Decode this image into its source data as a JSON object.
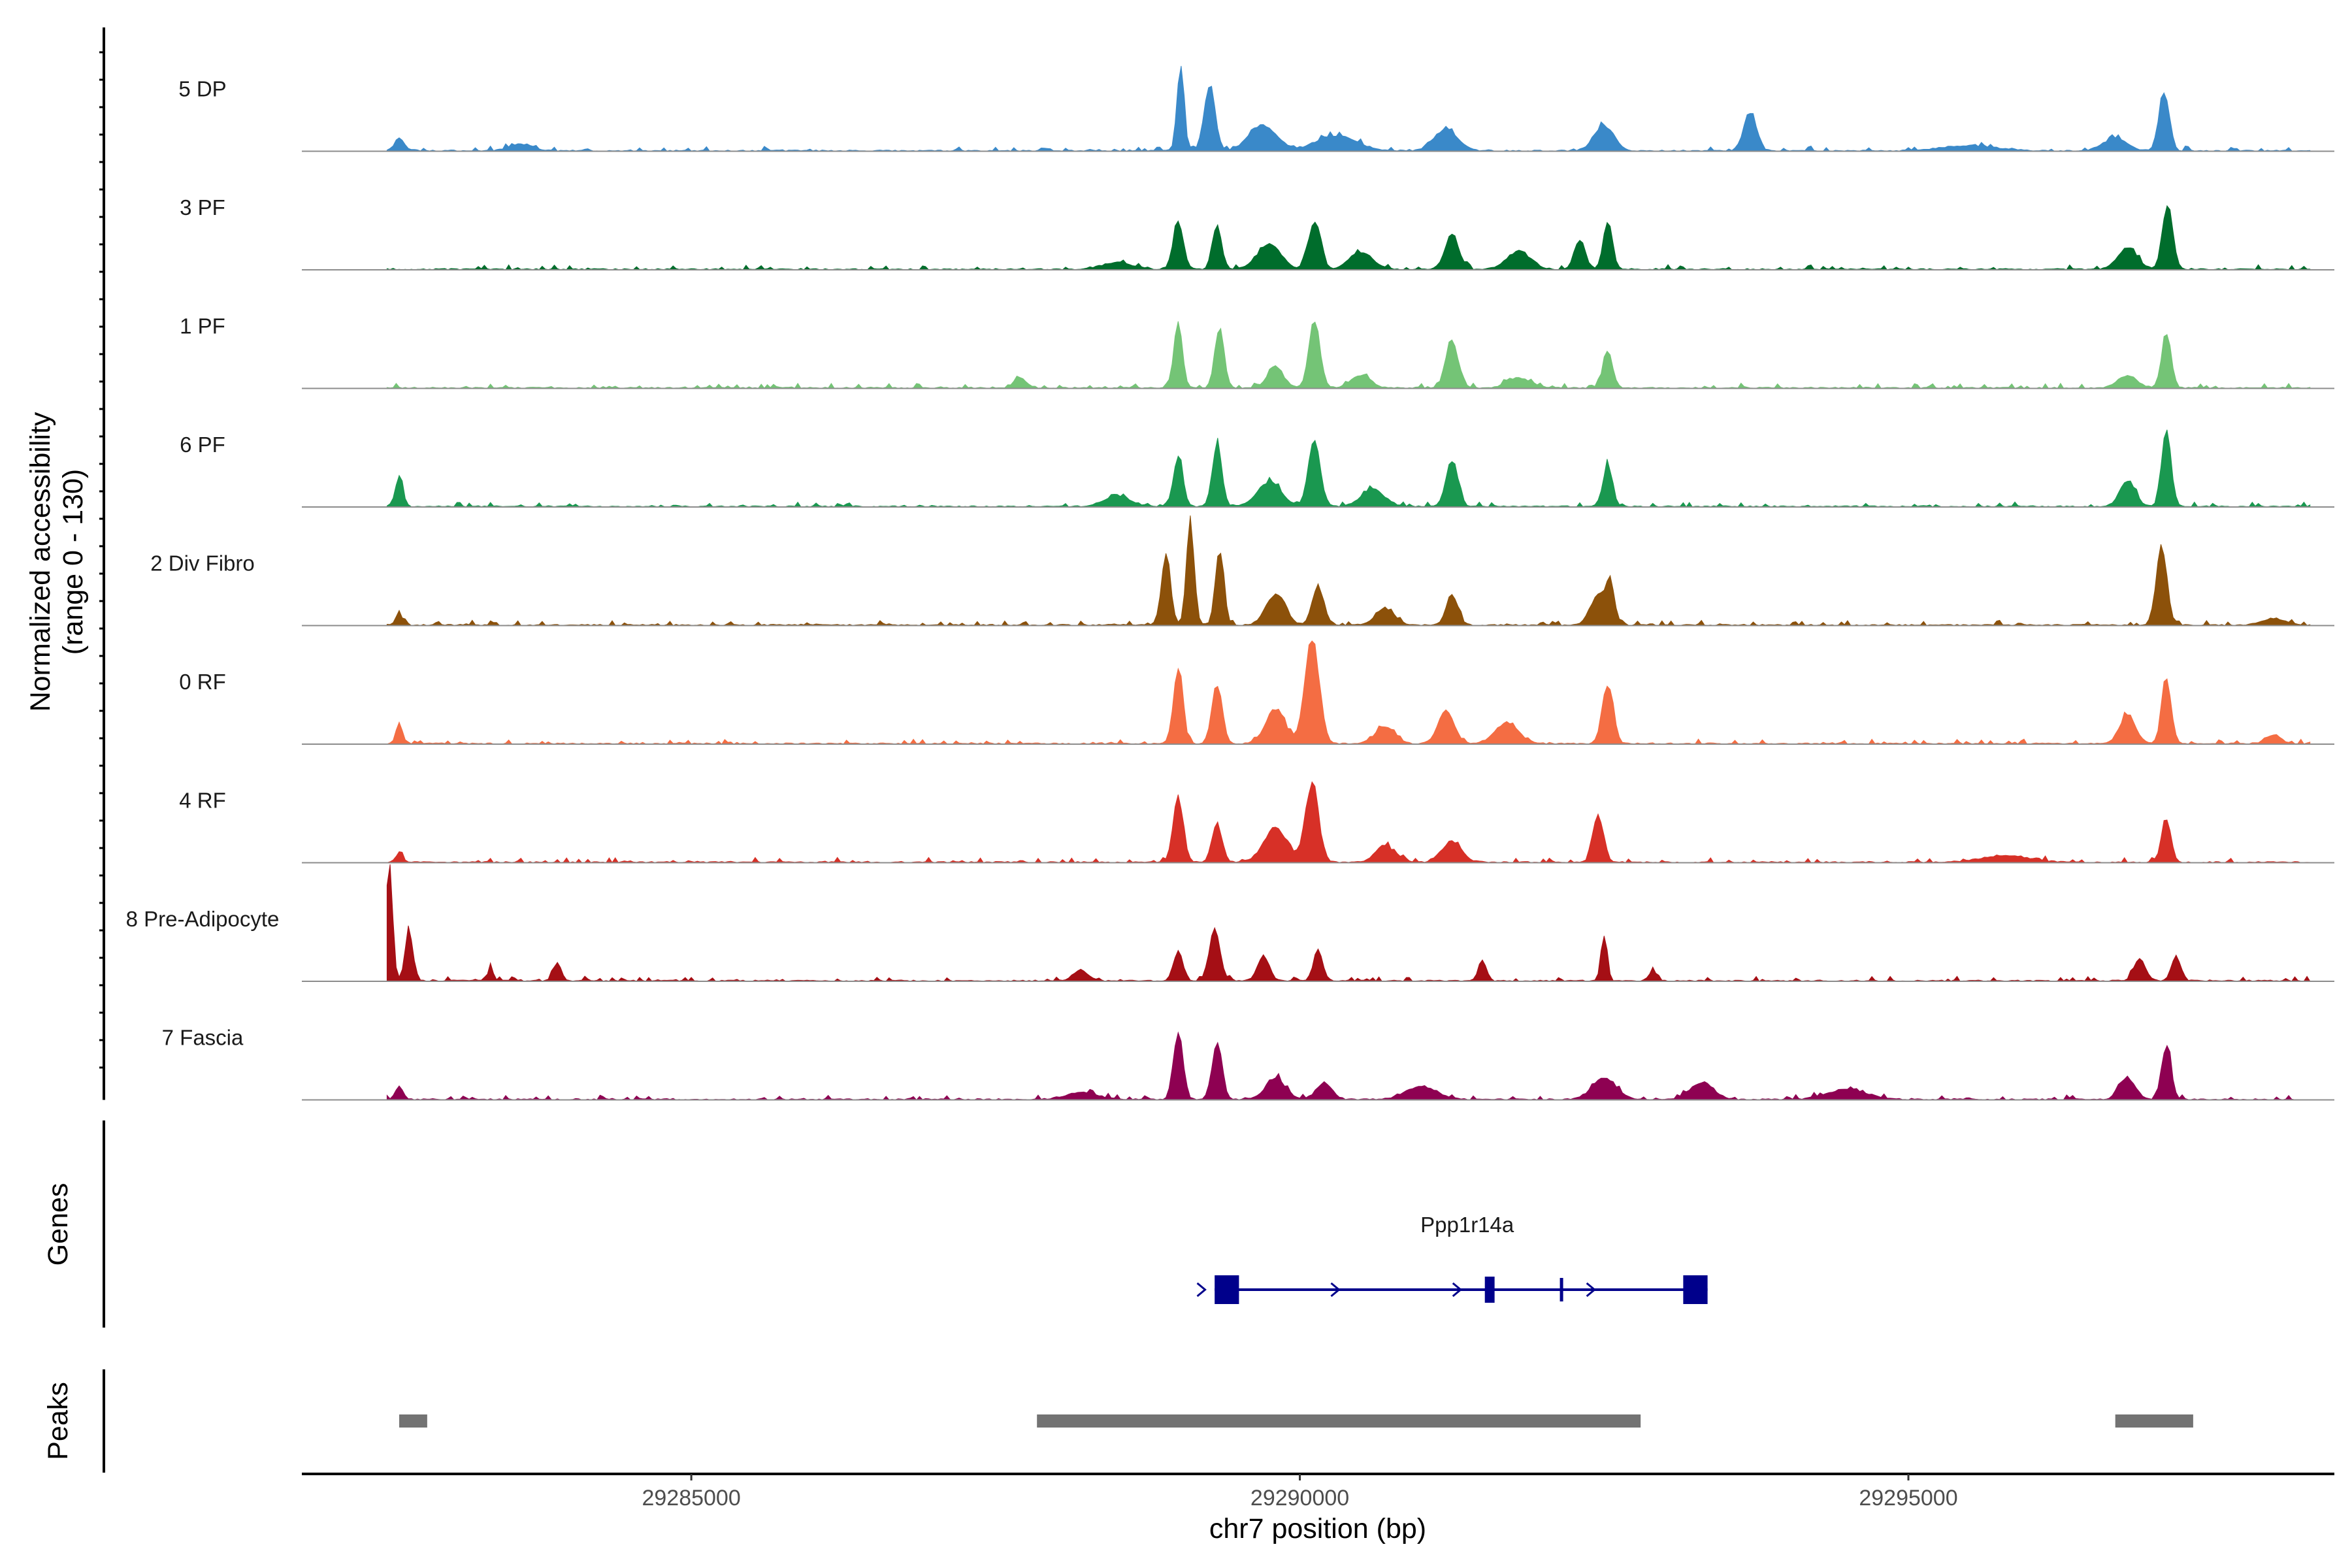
{
  "chart_data": {
    "type": "area",
    "x_range": [
      29281800,
      29298500
    ],
    "xlabel": "chr7 position (bp)",
    "x_ticks": [
      29285000,
      29290000,
      29295000
    ],
    "x_tick_labels": [
      "29285000",
      "29290000",
      "29295000"
    ],
    "ylabel_line1": "Normalized accessibility",
    "ylabel_line2": "(range 0 - 130)",
    "ylim": [
      0,
      130
    ],
    "genes_label": "Genes",
    "peaks_label": "Peaks",
    "series": [
      {
        "name": "5 DP",
        "color": "#3a89c9",
        "profile": "dp"
      },
      {
        "name": "3 PF",
        "color": "#006d2c",
        "profile": "pf3"
      },
      {
        "name": "1 PF",
        "color": "#74c476",
        "profile": "pf1"
      },
      {
        "name": "6 PF",
        "color": "#1a9850",
        "profile": "pf6"
      },
      {
        "name": "2 Div Fibro",
        "color": "#8c510a",
        "profile": "div"
      },
      {
        "name": "0 RF",
        "color": "#f46d43",
        "profile": "rf0"
      },
      {
        "name": "4 RF",
        "color": "#d73027",
        "profile": "rf4"
      },
      {
        "name": "8 Pre-Adipocyte",
        "color": "#a50f15",
        "profile": "adi"
      },
      {
        "name": "7 Fascia",
        "color": "#8e0152",
        "profile": "fas"
      }
    ],
    "gene": {
      "name": "Ppp1r14a",
      "start": 29289300,
      "end": 29293350,
      "strand": "+",
      "color": "#00008b",
      "exons": [
        [
          29289300,
          29289500
        ],
        [
          29291520,
          29291600
        ],
        [
          29293150,
          29293350
        ]
      ],
      "intron_marks": [
        29289200,
        29290300,
        29291300,
        29292150,
        29292400
      ]
    },
    "peaks": [
      [
        29282600,
        29282830
      ],
      [
        29287840,
        29292800
      ],
      [
        29296700,
        29297340
      ]
    ]
  }
}
